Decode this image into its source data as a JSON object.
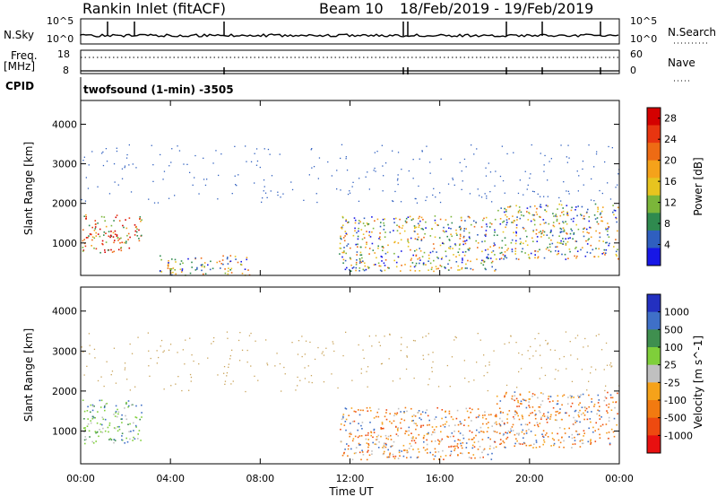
{
  "header": {
    "station": "Rankin Inlet (fitACF)",
    "beam": "Beam 10",
    "date_range": "18/Feb/2019 - 19/Feb/2019"
  },
  "top_panels": {
    "sky": {
      "left_label": "N.Sky",
      "right_label": "N.Search",
      "left_ticks": [
        "10^5",
        "10^0"
      ],
      "right_ticks": [
        "10^5",
        "10^0"
      ]
    },
    "freq": {
      "left_label_1": "Freq.",
      "left_label_2": "[MHz]",
      "right_label": "Nave",
      "left_ticks": [
        "18",
        "8"
      ],
      "right_ticks": [
        "60",
        "0"
      ]
    },
    "cpid": {
      "label": "CPID",
      "text": "twofsound (1-min) -3505"
    }
  },
  "colors": {
    "power_scale": [
      "#1717e6",
      "#2f5fbf",
      "#2f8a4f",
      "#7bb63a",
      "#e7c41f",
      "#f5a21a",
      "#ee6b14",
      "#e83510",
      "#d40000"
    ],
    "velocity_scale": [
      "#e81010",
      "#ee4a10",
      "#f27a10",
      "#f5a21a",
      "#c0c0c0",
      "#7fcf3a",
      "#3f8f4f",
      "#3f70c8",
      "#2330c0"
    ]
  },
  "chart_data": [
    {
      "type": "heatmap",
      "panel": "power",
      "xlabel": "Time UT",
      "ylabel": "Slant Range [km]",
      "x_ticks": [
        "00:00",
        "04:00",
        "08:00",
        "12:00",
        "16:00",
        "20:00",
        "00:00"
      ],
      "y_ticks": [
        1000,
        2000,
        3000,
        4000
      ],
      "xlim_hours": [
        0,
        24
      ],
      "ylim_km": [
        180,
        4600
      ],
      "colorbar": {
        "label": "Power [dB]",
        "ticks": [
          "4",
          "8",
          "12",
          "16",
          "20",
          "24",
          "28"
        ],
        "range": [
          0,
          30
        ]
      },
      "regions": [
        {
          "t_start": 0.0,
          "t_end": 2.7,
          "r_start": 750,
          "r_end": 1750,
          "level": "high"
        },
        {
          "t_start": 3.5,
          "t_end": 7.5,
          "r_start": 200,
          "r_end": 700,
          "level": "mid"
        },
        {
          "t_start": 11.5,
          "t_end": 18.5,
          "r_start": 300,
          "r_end": 1700,
          "level": "mid"
        },
        {
          "t_start": 18.5,
          "t_end": 24.0,
          "r_start": 600,
          "r_end": 2000,
          "level": "mid-high"
        }
      ]
    },
    {
      "type": "heatmap",
      "panel": "velocity",
      "xlabel": "Time UT",
      "ylabel": "Slant Range [km]",
      "x_ticks": [
        "00:00",
        "04:00",
        "08:00",
        "12:00",
        "16:00",
        "20:00",
        "00:00"
      ],
      "y_ticks": [
        1000,
        2000,
        3000,
        4000
      ],
      "xlim_hours": [
        0,
        24
      ],
      "ylim_km": [
        180,
        4600
      ],
      "colorbar": {
        "label": "Velocity [m s^-1]",
        "ticks": [
          "1000",
          "500",
          "100",
          "25",
          "-25",
          "-100",
          "-500",
          "-1000"
        ]
      },
      "regions": [
        {
          "t_start": 0.0,
          "t_end": 2.7,
          "r_start": 700,
          "r_end": 1800,
          "level": "positive-low"
        },
        {
          "t_start": 11.5,
          "t_end": 18.5,
          "r_start": 300,
          "r_end": 1600,
          "level": "negative"
        },
        {
          "t_start": 18.5,
          "t_end": 24.0,
          "r_start": 600,
          "r_end": 2000,
          "level": "negative"
        }
      ]
    }
  ]
}
